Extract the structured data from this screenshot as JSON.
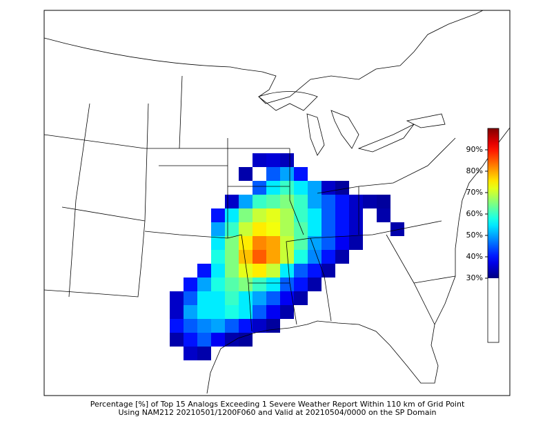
{
  "map": {
    "caption": [
      "Percentage [%] of Top 15 Analogs Exceeding 1 Severe Weather Report Within 110 km of Grid Point",
      "Using NAM212 20210501/1200F060 and Valid at 20210504/0000 on the SP Domain"
    ],
    "colorbar": {
      "range": [
        0,
        100
      ],
      "ticks": [
        {
          "value": 30,
          "label": "30%"
        },
        {
          "value": 40,
          "label": "40%"
        },
        {
          "value": 50,
          "label": "50%"
        },
        {
          "value": 60,
          "label": "60%"
        },
        {
          "value": 70,
          "label": "70%"
        },
        {
          "value": 80,
          "label": "80%"
        },
        {
          "value": 90,
          "label": "90%"
        }
      ]
    },
    "grid": {
      "rows": [
        [
          null,
          null,
          null,
          null,
          null,
          null,
          35,
          36,
          34,
          null,
          null,
          null,
          null,
          null,
          null,
          null,
          null
        ],
        [
          null,
          null,
          null,
          null,
          null,
          33,
          null,
          45,
          50,
          40,
          null,
          null,
          null,
          null,
          null,
          null,
          null
        ],
        [
          null,
          null,
          null,
          null,
          null,
          null,
          45,
          55,
          60,
          55,
          50,
          35,
          32,
          null,
          null,
          null,
          null
        ],
        [
          null,
          null,
          null,
          null,
          35,
          50,
          60,
          62,
          65,
          60,
          50,
          45,
          40,
          35,
          33,
          32,
          null
        ],
        [
          null,
          null,
          null,
          40,
          55,
          65,
          70,
          72,
          68,
          60,
          55,
          45,
          40,
          35,
          null,
          33,
          null
        ],
        [
          null,
          null,
          null,
          50,
          60,
          70,
          75,
          73,
          68,
          62,
          55,
          45,
          40,
          35,
          null,
          null,
          33
        ],
        [
          null,
          null,
          null,
          55,
          65,
          75,
          82,
          80,
          70,
          62,
          50,
          45,
          38,
          33,
          null,
          null,
          null
        ],
        [
          null,
          null,
          null,
          58,
          65,
          78,
          85,
          80,
          70,
          58,
          48,
          40,
          33,
          null,
          null,
          null,
          null
        ],
        [
          null,
          null,
          40,
          55,
          65,
          72,
          75,
          70,
          55,
          45,
          40,
          33,
          null,
          null,
          null,
          null,
          null
        ],
        [
          null,
          40,
          50,
          58,
          62,
          65,
          60,
          55,
          45,
          40,
          33,
          null,
          null,
          null,
          null,
          null,
          null
        ],
        [
          35,
          45,
          55,
          55,
          60,
          55,
          50,
          45,
          38,
          33,
          null,
          null,
          null,
          null,
          null,
          null,
          null
        ],
        [
          35,
          50,
          55,
          55,
          58,
          55,
          45,
          38,
          33,
          null,
          null,
          null,
          null,
          null,
          null,
          null,
          null
        ],
        [
          40,
          45,
          48,
          50,
          45,
          40,
          35,
          32,
          null,
          null,
          null,
          null,
          null,
          null,
          null,
          null,
          null
        ],
        [
          33,
          40,
          45,
          38,
          33,
          32,
          null,
          null,
          null,
          null,
          null,
          null,
          null,
          null,
          null,
          null,
          null
        ],
        [
          null,
          35,
          33,
          null,
          null,
          null,
          null,
          null,
          null,
          null,
          null,
          null,
          null,
          null,
          null,
          null,
          null
        ]
      ]
    }
  }
}
